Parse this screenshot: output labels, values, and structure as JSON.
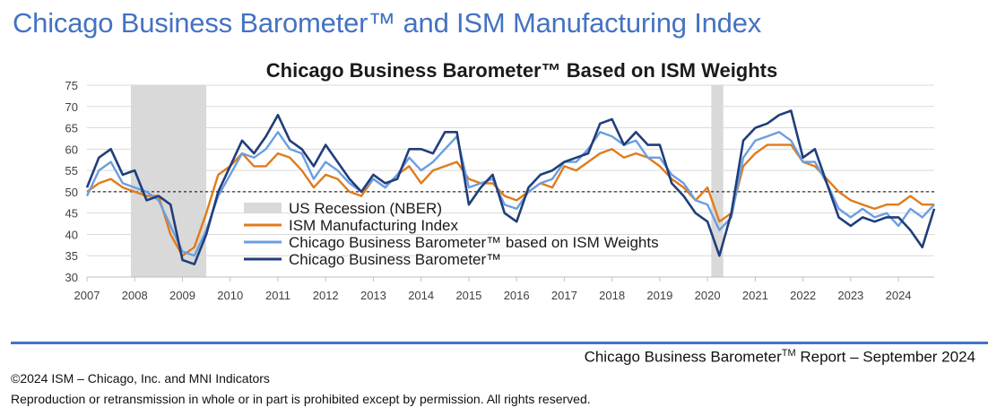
{
  "page": {
    "title": "Chicago Business Barometer™ and ISM Manufacturing Index",
    "report_name": "Chicago Business Barometer",
    "report_sup": "TM",
    "report_suffix": " Report – September 2024",
    "copyright": "©2024 ISM – Chicago, Inc. and MNI Indicators",
    "rights": "Reproduction or retransmission in whole or in part is prohibited except by permission. All rights reserved."
  },
  "chart_data": {
    "type": "line",
    "title": "Chicago Business Barometer™  Based on ISM Weights",
    "xlabel": "",
    "ylabel": "",
    "xlim": [
      2007.0,
      2024.75
    ],
    "ylim": [
      30,
      75
    ],
    "y_ticks": [
      30,
      35,
      40,
      45,
      50,
      55,
      60,
      65,
      70,
      75
    ],
    "x_ticks": [
      "2007",
      "2008",
      "2009",
      "2010",
      "2011",
      "2012",
      "2013",
      "2014",
      "2015",
      "2016",
      "2017",
      "2018",
      "2019",
      "2020",
      "2021",
      "2022",
      "2023",
      "2024"
    ],
    "grid": "horizontal",
    "reference_line": 50,
    "recessions": [
      {
        "label": "US Recession (NBER)",
        "start": 2007.92,
        "end": 2009.5,
        "color": "#d9d9d9"
      },
      {
        "label": "",
        "start": 2020.08,
        "end": 2020.33,
        "color": "#d9d9d9"
      }
    ],
    "legend": {
      "placement": "center-left",
      "entries": [
        "US Recession (NBER)",
        "ISM Manufacturing Index",
        "Chicago Business Barometer™ based on ISM Weights",
        "Chicago Business Barometer™"
      ]
    },
    "series": [
      {
        "name": "ISM Manufacturing Index",
        "color": "#e07b1c",
        "x": [
          2007.0,
          2007.25,
          2007.5,
          2007.75,
          2008.0,
          2008.25,
          2008.5,
          2008.75,
          2009.0,
          2009.25,
          2009.5,
          2009.75,
          2010.0,
          2010.25,
          2010.5,
          2010.75,
          2011.0,
          2011.25,
          2011.5,
          2011.75,
          2012.0,
          2012.25,
          2012.5,
          2012.75,
          2013.0,
          2013.25,
          2013.5,
          2013.75,
          2014.0,
          2014.25,
          2014.5,
          2014.75,
          2015.0,
          2015.25,
          2015.5,
          2015.75,
          2016.0,
          2016.25,
          2016.5,
          2016.75,
          2017.0,
          2017.25,
          2017.5,
          2017.75,
          2018.0,
          2018.25,
          2018.5,
          2018.75,
          2019.0,
          2019.25,
          2019.5,
          2019.75,
          2020.0,
          2020.25,
          2020.5,
          2020.75,
          2021.0,
          2021.25,
          2021.5,
          2021.75,
          2022.0,
          2022.25,
          2022.5,
          2022.75,
          2023.0,
          2023.25,
          2023.5,
          2023.75,
          2024.0,
          2024.25,
          2024.5,
          2024.75
        ],
        "y": [
          50,
          52,
          53,
          51,
          50,
          49,
          49,
          40,
          35,
          37,
          45,
          54,
          56,
          59,
          56,
          56,
          59,
          58,
          55,
          51,
          54,
          53,
          50,
          49,
          53,
          51,
          54,
          56,
          52,
          55,
          56,
          57,
          53,
          52,
          52,
          49,
          48,
          50,
          52,
          51,
          56,
          55,
          57,
          59,
          60,
          58,
          59,
          58,
          56,
          53,
          51,
          48,
          51,
          43,
          45,
          56,
          59,
          61,
          61,
          61,
          57,
          56,
          53,
          50,
          48,
          47,
          46,
          47,
          47,
          49,
          47,
          47
        ]
      },
      {
        "name": "Chicago Business Barometer™ based on ISM Weights",
        "color": "#6b9ee0",
        "x": [
          2007.0,
          2007.25,
          2007.5,
          2007.75,
          2008.0,
          2008.25,
          2008.5,
          2008.75,
          2009.0,
          2009.25,
          2009.5,
          2009.75,
          2010.0,
          2010.25,
          2010.5,
          2010.75,
          2011.0,
          2011.25,
          2011.5,
          2011.75,
          2012.0,
          2012.25,
          2012.5,
          2012.75,
          2013.0,
          2013.25,
          2013.5,
          2013.75,
          2014.0,
          2014.25,
          2014.5,
          2014.75,
          2015.0,
          2015.25,
          2015.5,
          2015.75,
          2016.0,
          2016.25,
          2016.5,
          2016.75,
          2017.0,
          2017.25,
          2017.5,
          2017.75,
          2018.0,
          2018.25,
          2018.5,
          2018.75,
          2019.0,
          2019.25,
          2019.5,
          2019.75,
          2020.0,
          2020.25,
          2020.5,
          2020.75,
          2021.0,
          2021.25,
          2021.5,
          2021.75,
          2022.0,
          2022.25,
          2022.5,
          2022.75,
          2023.0,
          2023.25,
          2023.5,
          2023.75,
          2024.0,
          2024.25,
          2024.5,
          2024.75
        ],
        "y": [
          49,
          55,
          57,
          52,
          51,
          50,
          48,
          42,
          36,
          35,
          41,
          49,
          54,
          59,
          58,
          60,
          64,
          60,
          59,
          53,
          57,
          55,
          52,
          50,
          53,
          51,
          54,
          58,
          55,
          57,
          60,
          63,
          51,
          52,
          53,
          47,
          46,
          50,
          52,
          53,
          57,
          57,
          60,
          64,
          63,
          61,
          62,
          58,
          58,
          54,
          52,
          48,
          47,
          41,
          44,
          58,
          62,
          63,
          64,
          62,
          57,
          57,
          52,
          46,
          44,
          46,
          44,
          45,
          42,
          46,
          44,
          47
        ]
      },
      {
        "name": "Chicago Business Barometer™",
        "color": "#203e7a",
        "x": [
          2007.0,
          2007.25,
          2007.5,
          2007.75,
          2008.0,
          2008.25,
          2008.5,
          2008.75,
          2009.0,
          2009.25,
          2009.5,
          2009.75,
          2010.0,
          2010.25,
          2010.5,
          2010.75,
          2011.0,
          2011.25,
          2011.5,
          2011.75,
          2012.0,
          2012.25,
          2012.5,
          2012.75,
          2013.0,
          2013.25,
          2013.5,
          2013.75,
          2014.0,
          2014.25,
          2014.5,
          2014.75,
          2015.0,
          2015.25,
          2015.5,
          2015.75,
          2016.0,
          2016.25,
          2016.5,
          2016.75,
          2017.0,
          2017.25,
          2017.5,
          2017.75,
          2018.0,
          2018.25,
          2018.5,
          2018.75,
          2019.0,
          2019.25,
          2019.5,
          2019.75,
          2020.0,
          2020.25,
          2020.5,
          2020.75,
          2021.0,
          2021.25,
          2021.5,
          2021.75,
          2022.0,
          2022.25,
          2022.5,
          2022.75,
          2023.0,
          2023.25,
          2023.5,
          2023.75,
          2024.0,
          2024.25,
          2024.5,
          2024.75
        ],
        "y": [
          51,
          58,
          60,
          54,
          55,
          48,
          49,
          47,
          34,
          33,
          40,
          50,
          56,
          62,
          59,
          63,
          68,
          62,
          60,
          56,
          61,
          57,
          53,
          50,
          54,
          52,
          53,
          60,
          60,
          59,
          64,
          64,
          47,
          51,
          54,
          45,
          43,
          51,
          54,
          55,
          57,
          58,
          59,
          66,
          67,
          61,
          64,
          61,
          61,
          52,
          49,
          45,
          43,
          35,
          45,
          62,
          65,
          66,
          68,
          69,
          58,
          60,
          52,
          44,
          42,
          44,
          43,
          44,
          44,
          41,
          37,
          46
        ]
      }
    ]
  }
}
